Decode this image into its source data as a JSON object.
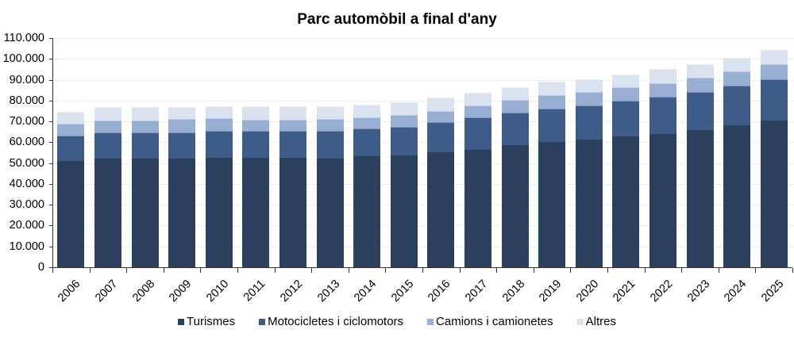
{
  "chart_data": {
    "type": "bar",
    "stacked": true,
    "title": "Parc automòbil a final d'any",
    "xlabel": "",
    "ylabel": "",
    "ylim": [
      0,
      110000
    ],
    "yticks": [
      0,
      10000,
      20000,
      30000,
      40000,
      50000,
      60000,
      70000,
      80000,
      90000,
      100000,
      110000
    ],
    "ytick_labels": [
      "0",
      "10.000",
      "20.000",
      "30.000",
      "40.000",
      "50.000",
      "60.000",
      "70.000",
      "80.000",
      "90.000",
      "100.000",
      "110.000"
    ],
    "grid": true,
    "legend_position": "bottom",
    "categories": [
      "2006",
      "2007",
      "2008",
      "2009",
      "2010",
      "2011",
      "2012",
      "2013",
      "2014",
      "2015",
      "2016",
      "2017",
      "2018",
      "2019",
      "2020",
      "2021",
      "2022",
      "2023",
      "2024",
      "2025"
    ],
    "series": [
      {
        "name": "Turismes",
        "color": "#2b3f5f",
        "values": [
          51000,
          52200,
          52200,
          52200,
          52500,
          52500,
          52500,
          52300,
          53200,
          53500,
          55200,
          56500,
          58700,
          60300,
          61300,
          62700,
          64000,
          65900,
          68000,
          70500
        ]
      },
      {
        "name": "Motocicletes i ciclomotors",
        "color": "#3e5c8a",
        "values": [
          12200,
          12500,
          12600,
          12600,
          13000,
          13000,
          13000,
          13200,
          13300,
          14000,
          14300,
          15500,
          15500,
          15900,
          16400,
          17200,
          18000,
          18400,
          19000,
          19700
        ]
      },
      {
        "name": "Camions i camionetes",
        "color": "#98afd3",
        "values": [
          5700,
          5700,
          5700,
          6200,
          6000,
          5500,
          5500,
          5500,
          5500,
          5500,
          5500,
          5500,
          6000,
          6500,
          6600,
          6600,
          6400,
          6700,
          7000,
          7400
        ]
      },
      {
        "name": "Altres",
        "color": "#dbe2ef",
        "values": [
          5700,
          6500,
          6300,
          5800,
          5700,
          6200,
          6200,
          6200,
          6200,
          6300,
          6300,
          6300,
          6100,
          6300,
          6100,
          6100,
          6700,
          6600,
          6500,
          6700
        ]
      }
    ]
  }
}
